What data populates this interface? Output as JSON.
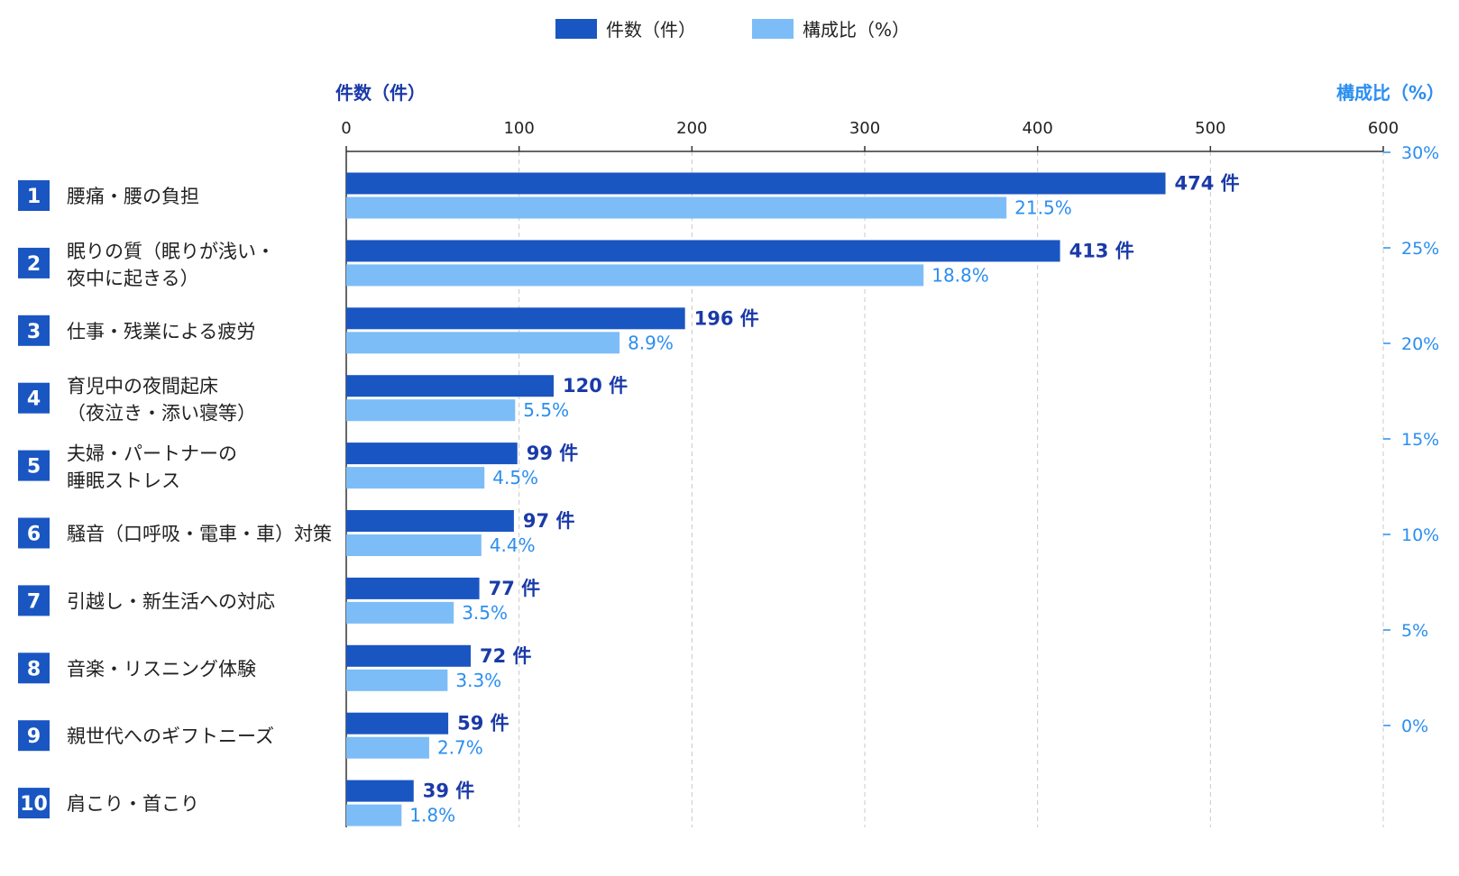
{
  "legend": {
    "count_label": "件数（件）",
    "ratio_label": "構成比（%）"
  },
  "colors": {
    "count_bar": "#1a56c2",
    "ratio_bar": "#7dbdf7",
    "count_text": "#1a3aa8",
    "ratio_text": "#2b8ef0",
    "rank_badge": "#1a56c2",
    "grid": "#c8c8c8",
    "axis": "#333333"
  },
  "chart_data": {
    "type": "bar",
    "orientation": "horizontal",
    "top_axis": {
      "title": "件数（件）",
      "ticks": [
        "0",
        "100",
        "200",
        "300",
        "400",
        "500",
        "600"
      ],
      "range": [
        0,
        600
      ]
    },
    "right_axis": {
      "title": "構成比（%）",
      "ticks": [
        "30%",
        "25%",
        "20%",
        "15%",
        "10%",
        "5%",
        "0%"
      ]
    },
    "grid": true,
    "legend_position": "top-center",
    "categories": [
      {
        "rank": "1",
        "lines": [
          "腰痛・腰の負担"
        ]
      },
      {
        "rank": "2",
        "lines": [
          "眠りの質（眠りが浅い・",
          "夜中に起きる）"
        ]
      },
      {
        "rank": "3",
        "lines": [
          "仕事・残業による疲労"
        ]
      },
      {
        "rank": "4",
        "lines": [
          "育児中の夜間起床",
          "（夜泣き・添い寝等）"
        ]
      },
      {
        "rank": "5",
        "lines": [
          "夫婦・パートナーの",
          "睡眠ストレス"
        ]
      },
      {
        "rank": "6",
        "lines": [
          "騒音（口呼吸・電車・車）対策"
        ]
      },
      {
        "rank": "7",
        "lines": [
          "引越し・新生活への対応"
        ]
      },
      {
        "rank": "8",
        "lines": [
          "音楽・リスニング体験"
        ]
      },
      {
        "rank": "9",
        "lines": [
          "親世代へのギフトニーズ"
        ]
      },
      {
        "rank": "10",
        "lines": [
          "肩こり・首こり"
        ]
      }
    ],
    "series": [
      {
        "name": "件数（件）",
        "values": [
          474,
          413,
          196,
          120,
          99,
          97,
          77,
          72,
          59,
          39
        ],
        "labels": [
          "474 件",
          "413 件",
          "196 件",
          "120 件",
          "99 件",
          "97 件",
          "77 件",
          "72 件",
          "59 件",
          "39 件"
        ]
      },
      {
        "name": "構成比（%）",
        "values": [
          21.5,
          18.8,
          8.9,
          5.5,
          4.5,
          4.4,
          3.5,
          3.3,
          2.7,
          1.8
        ],
        "labels": [
          "21.5%",
          "18.8%",
          "8.9%",
          "5.5%",
          "4.5%",
          "4.4%",
          "3.5%",
          "3.3%",
          "2.7%",
          "1.8%"
        ]
      }
    ]
  }
}
